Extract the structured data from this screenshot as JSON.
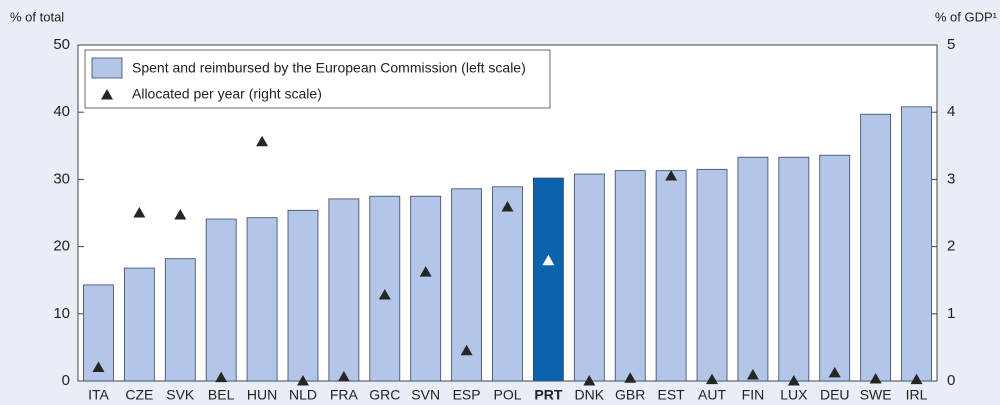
{
  "chart_data": {
    "type": "bar",
    "y_label": "% of total",
    "y2_label": "% of GDP¹",
    "categories": [
      "ITA",
      "CZE",
      "SVK",
      "BEL",
      "HUN",
      "NLD",
      "FRA",
      "GRC",
      "SVN",
      "ESP",
      "POL",
      "PRT",
      "DNK",
      "GBR",
      "EST",
      "AUT",
      "FIN",
      "LUX",
      "DEU",
      "SWE",
      "IRL"
    ],
    "series": [
      {
        "name": "Spent and reimbursed by the European Commission (left scale)",
        "type": "bar",
        "color": "#b4c6e7",
        "values": [
          14.3,
          16.8,
          18.2,
          24.1,
          24.3,
          25.4,
          27.1,
          27.5,
          27.5,
          28.6,
          28.9,
          30.2,
          30.8,
          31.3,
          31.3,
          31.5,
          33.3,
          33.3,
          33.6,
          39.7,
          40.8
        ]
      },
      {
        "name": "Allocated per year (right scale)",
        "type": "scatter",
        "marker": "triangle",
        "axis": "y2",
        "color": "#262626",
        "values": [
          0.2,
          2.5,
          2.47,
          0.05,
          3.56,
          0.0,
          0.06,
          1.28,
          1.62,
          0.45,
          2.59,
          1.79,
          0.0,
          0.04,
          3.05,
          0.02,
          0.09,
          0.0,
          0.12,
          0.03,
          0.02
        ]
      }
    ],
    "highlight": {
      "category": "PRT",
      "bar_color": "#0b62ad",
      "marker_color": "#ffffff"
    },
    "ylim": [
      0,
      50
    ],
    "yticks": [
      0,
      10,
      20,
      30,
      40,
      50
    ],
    "y2lim": [
      0,
      5
    ],
    "y2ticks": [
      0,
      1,
      2,
      3,
      4,
      5
    ],
    "grid": false
  }
}
